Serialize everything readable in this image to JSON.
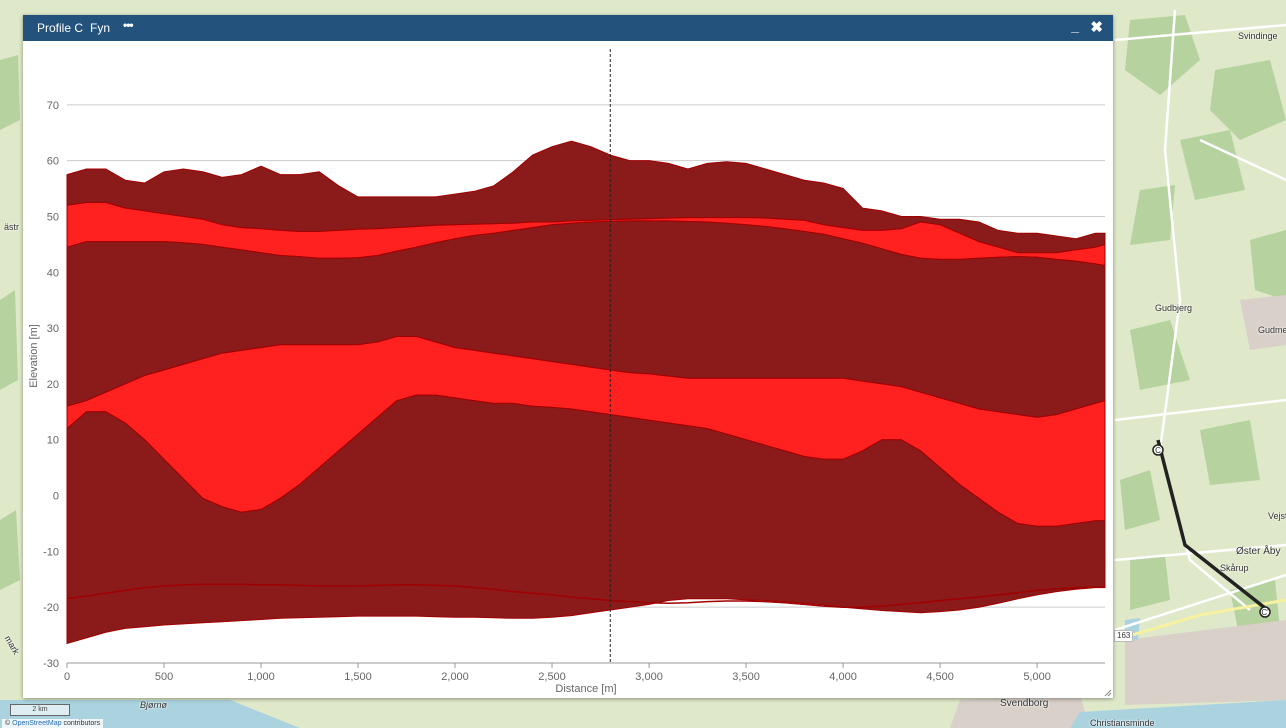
{
  "window": {
    "title": "Profile C",
    "subtitle": "Fyn",
    "menu_icon": "ellipsis-icon",
    "minimize_label": "_",
    "close_label": "✖"
  },
  "map": {
    "labels": {
      "svindinge": "Svindinge",
      "gudbjerg": "Gudbjerg",
      "gudme": "Gudme",
      "vejst": "Vejst",
      "oster_aby": "Øster Åby",
      "skarup": "Skårup",
      "svendborg": "Svendborg",
      "christiansminde": "Christiansminde",
      "bjorno": "Bjørnø",
      "astr": "ästr",
      "mark": "mark"
    },
    "road_badge": "163",
    "scale_label": "2 km",
    "attribution_prefix": "©",
    "attribution_link": "OpenStreetMap",
    "attribution_suffix": "contributors",
    "colors": {
      "land": "#dfe9c9",
      "water": "#aad3df",
      "road": "#ffffff",
      "profile_line": "#222222"
    }
  },
  "chart_data": {
    "type": "area",
    "xlabel": "Distance [m]",
    "ylabel": "Elevation [m]",
    "xlim": [
      0,
      5350
    ],
    "ylim": [
      -30,
      80
    ],
    "xticks": [
      0,
      500,
      1000,
      1500,
      2000,
      2500,
      3000,
      3500,
      4000,
      4500,
      5000
    ],
    "xtick_labels": [
      "0",
      "500",
      "1,000",
      "1,500",
      "2,000",
      "2,500",
      "3,000",
      "3,500",
      "4,000",
      "4,500",
      "5,000"
    ],
    "yticks": [
      -30,
      -20,
      -10,
      0,
      10,
      20,
      30,
      40,
      50,
      60,
      70
    ],
    "ytick_labels": [
      "-30",
      "-20",
      "-10",
      "0",
      "10",
      "20",
      "30",
      "40",
      "50",
      "60",
      "70"
    ],
    "cursor_x": 2800,
    "grid": true,
    "colors": {
      "dark": "#8b1a1a",
      "bright": "#ff2020",
      "edge": "#a00000",
      "grid": "#cccccc"
    },
    "x": [
      0,
      100,
      200,
      300,
      400,
      500,
      600,
      700,
      800,
      900,
      1000,
      1100,
      1200,
      1300,
      1400,
      1500,
      1600,
      1700,
      1800,
      1900,
      2000,
      2100,
      2200,
      2300,
      2400,
      2500,
      2600,
      2700,
      2800,
      2900,
      3000,
      3100,
      3200,
      3300,
      3400,
      3500,
      3600,
      3700,
      3800,
      3900,
      4000,
      4100,
      4200,
      4300,
      4400,
      4500,
      4600,
      4700,
      4800,
      4900,
      5000,
      5100,
      5200,
      5300,
      5350
    ],
    "layers": [
      {
        "fill": "dark",
        "top": [
          57.5,
          58.5,
          58.5,
          56.5,
          56,
          58,
          58.5,
          58,
          57,
          57.5,
          59,
          57.5,
          57.5,
          58,
          55.5,
          53.5,
          53.5,
          53.5,
          53.5,
          53.5,
          54,
          54.5,
          55.5,
          58,
          61,
          62.5,
          63.5,
          62.5,
          61,
          60,
          60,
          59.5,
          58.5,
          59.5,
          59.8,
          59.5,
          58.5,
          57.5,
          56.5,
          56,
          55,
          51.5,
          51,
          50,
          50,
          49.5,
          49.5,
          49,
          47.5,
          47,
          47,
          46.5,
          46,
          47,
          47
        ],
        "bottom": [
          52,
          52.5,
          52.5,
          51.5,
          51,
          50.5,
          50,
          49.5,
          48.5,
          48,
          47.8,
          47.5,
          47.3,
          47.3,
          47.5,
          47.7,
          47.8,
          48,
          48.2,
          48.4,
          48.5,
          48.6,
          48.7,
          48.8,
          49,
          49,
          49.2,
          49.3,
          49.4,
          49.5,
          49.6,
          49.7,
          49.8,
          49.8,
          49.8,
          49.8,
          49.7,
          49.5,
          49.3,
          48.5,
          48,
          47.5,
          47.5,
          47.8,
          49,
          48.5,
          47,
          45.5,
          44.5,
          43.5,
          43.5,
          43.5,
          44,
          44.5,
          45
        ]
      },
      {
        "fill": "bright",
        "top": [
          52,
          52.5,
          52.5,
          51.5,
          51,
          50.5,
          50,
          49.5,
          48.5,
          48,
          47.8,
          47.5,
          47.3,
          47.3,
          47.5,
          47.7,
          47.8,
          48,
          48.2,
          48.4,
          48.5,
          48.6,
          48.7,
          48.8,
          49,
          49,
          49.2,
          49.3,
          49.4,
          49.5,
          49.6,
          49.7,
          49.8,
          49.8,
          49.8,
          49.8,
          49.7,
          49.5,
          49.3,
          48.5,
          48,
          47.5,
          47.5,
          47.8,
          49,
          48.5,
          47,
          45.5,
          44.5,
          43.5,
          43.5,
          43.5,
          44,
          44.5,
          45
        ],
        "bottom": [
          44.5,
          45.5,
          45.5,
          45.5,
          45.5,
          45.5,
          45.3,
          45,
          44.5,
          44,
          43.5,
          43,
          42.8,
          42.5,
          42.5,
          42.6,
          43,
          43.8,
          44.5,
          45.3,
          46,
          46.6,
          47,
          47.5,
          48,
          48.5,
          48.8,
          49,
          49.1,
          49.2,
          49.2,
          49.2,
          49.1,
          49,
          48.8,
          48.5,
          48.2,
          47.8,
          47.3,
          46.8,
          46,
          45.2,
          44.2,
          43.2,
          42.5,
          42.3,
          42.3,
          42.5,
          42.7,
          42.8,
          42.7,
          42.3,
          42,
          41.5,
          41.2
        ]
      },
      {
        "fill": "dark",
        "top": [
          44.5,
          45.5,
          45.5,
          45.5,
          45.5,
          45.5,
          45.3,
          45,
          44.5,
          44,
          43.5,
          43,
          42.8,
          42.5,
          42.5,
          42.6,
          43,
          43.8,
          44.5,
          45.3,
          46,
          46.6,
          47,
          47.5,
          48,
          48.5,
          48.8,
          49,
          49.1,
          49.2,
          49.2,
          49.2,
          49.1,
          49,
          48.8,
          48.5,
          48.2,
          47.8,
          47.3,
          46.8,
          46,
          45.2,
          44.2,
          43.2,
          42.5,
          42.3,
          42.3,
          42.5,
          42.7,
          42.8,
          42.7,
          42.3,
          42,
          41.5,
          41.2
        ],
        "bottom": [
          16,
          17,
          18.5,
          20,
          21.5,
          22.5,
          23.5,
          24.5,
          25.5,
          26,
          26.5,
          27,
          27,
          27,
          27,
          27,
          27.5,
          28.5,
          28.5,
          27.5,
          26.5,
          26,
          25.5,
          25,
          24.5,
          24,
          23.5,
          23,
          22.5,
          22,
          21.8,
          21.4,
          21,
          21,
          21,
          21,
          21,
          21,
          21,
          21,
          21,
          20.5,
          20,
          19.5,
          18.5,
          17.5,
          16.5,
          15.5,
          15,
          14.5,
          14,
          14.5,
          15.5,
          16.5,
          17
        ]
      },
      {
        "fill": "bright",
        "top": [
          16,
          17,
          18.5,
          20,
          21.5,
          22.5,
          23.5,
          24.5,
          25.5,
          26,
          26.5,
          27,
          27,
          27,
          27,
          27,
          27.5,
          28.5,
          28.5,
          27.5,
          26.5,
          26,
          25.5,
          25,
          24.5,
          24,
          23.5,
          23,
          22.5,
          22,
          21.8,
          21.4,
          21,
          21,
          21,
          21,
          21,
          21,
          21,
          21,
          21,
          20.5,
          20,
          19.5,
          18.5,
          17.5,
          16.5,
          15.5,
          15,
          14.5,
          14,
          14.5,
          15.5,
          16.5,
          17
        ],
        "bottom": [
          12,
          15,
          15,
          13,
          10,
          6.5,
          3,
          -0.5,
          -2,
          -3,
          -2.5,
          -0.5,
          2,
          5,
          8,
          11,
          14,
          17,
          18,
          18,
          17.5,
          17,
          16.5,
          16.5,
          16,
          15.8,
          15.5,
          15,
          14.5,
          14,
          13.5,
          13,
          12.5,
          12,
          11,
          10,
          9,
          8,
          7,
          6.5,
          6.5,
          8,
          10,
          10,
          8,
          5,
          2,
          -0.5,
          -3,
          -5,
          -5.5,
          -5.5,
          -5,
          -4.5,
          -4.5
        ]
      },
      {
        "fill": "dark",
        "top": [
          12,
          15,
          15,
          13,
          10,
          6.5,
          3,
          -0.5,
          -2,
          -3,
          -2.5,
          -0.5,
          2,
          5,
          8,
          11,
          14,
          17,
          18,
          18,
          17.5,
          17,
          16.5,
          16.5,
          16,
          15.8,
          15.5,
          15,
          14.5,
          14,
          13.5,
          13,
          12.5,
          12,
          11,
          10,
          9,
          8,
          7,
          6.5,
          6.5,
          8,
          10,
          10,
          8,
          5,
          2,
          -0.5,
          -3,
          -5,
          -5.5,
          -5.5,
          -5,
          -4.5,
          -4.5
        ],
        "bottom": [
          -26.5,
          -25.5,
          -24.5,
          -23.8,
          -23.5,
          -23.2,
          -23,
          -22.8,
          -22.6,
          -22.4,
          -22.2,
          -22,
          -21.9,
          -21.8,
          -21.7,
          -21.6,
          -21.6,
          -21.6,
          -21.6,
          -21.7,
          -21.8,
          -21.8,
          -21.9,
          -22,
          -22,
          -21.8,
          -21.5,
          -21,
          -20.5,
          -20,
          -19.5,
          -18.8,
          -18.5,
          -18.5,
          -18.5,
          -18.7,
          -18.8,
          -19,
          -19.3,
          -19.6,
          -20,
          -20.3,
          -20.6,
          -20.8,
          -21,
          -20.8,
          -20.5,
          -20,
          -19.3,
          -18.5,
          -17.8,
          -17.2,
          -16.8,
          -16.5,
          -16.5
        ]
      }
    ],
    "lines": [
      {
        "y": [
          -18.5,
          -18,
          -17.5,
          -17,
          -16.5,
          -16.2,
          -16,
          -15.9,
          -15.9,
          -15.9,
          -16,
          -16,
          -16.1,
          -16.2,
          -16.2,
          -16.2,
          -16.1,
          -16,
          -16,
          -16.1,
          -16.2,
          -16.5,
          -16.8,
          -17.2,
          -17.5,
          -17.8,
          -18.2,
          -18.5,
          -18.8,
          -19,
          -19.2,
          -19.3,
          -19.2,
          -19,
          -18.9,
          -18.9,
          -19,
          -19.2,
          -19.5,
          -19.8,
          -20,
          -20,
          -19.8,
          -19.5,
          -19.2,
          -18.8,
          -18.5,
          -18.2,
          -17.8,
          -17.4,
          -17,
          -16.7,
          -16.5,
          -16.4,
          -16.4
        ]
      }
    ]
  }
}
